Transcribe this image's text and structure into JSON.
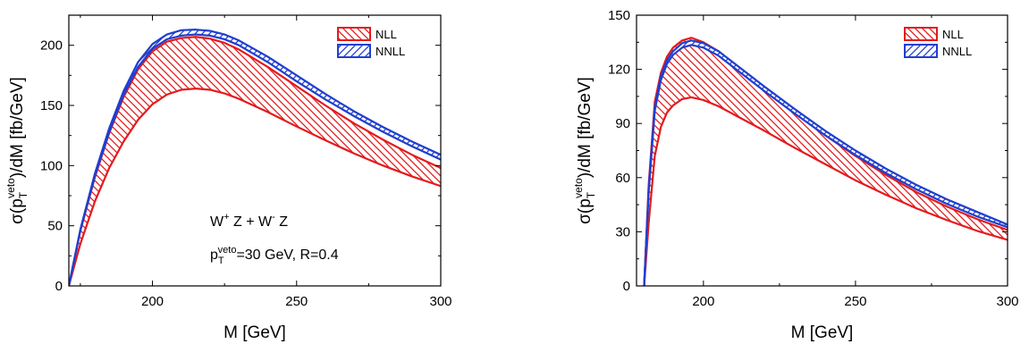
{
  "chart_data": [
    {
      "type": "area",
      "xlabel": "M [GeV]",
      "ylabel": "σ(p_T^veto)/dM [fb/GeV]",
      "ylabel_parts": {
        "pre": "σ(p",
        "sub": "T",
        "sup": "veto",
        "post": ")/dM [fb/GeV]"
      },
      "xlim": [
        171,
        300
      ],
      "ylim": [
        0,
        225
      ],
      "xticks": [
        200,
        250,
        300
      ],
      "yticks": [
        0,
        50,
        100,
        150,
        200
      ],
      "legend_position": "top-right",
      "annotations": [
        {
          "parts": [
            {
              "t": "W"
            },
            {
              "t": "+",
              "sup": true
            },
            {
              "t": " Z + W"
            },
            {
              "t": "-",
              "sup": true
            },
            {
              "t": " Z"
            }
          ]
        },
        {
          "parts": [
            {
              "t": "p"
            },
            {
              "t": "T",
              "sub": true
            },
            {
              "t": "veto",
              "sup": true
            },
            {
              "t": "=30 GeV, R=0.4"
            }
          ]
        }
      ],
      "series": [
        {
          "name": "NLL",
          "color": "#e31a1c",
          "hatch": "diagonal-down",
          "x": [
            171,
            175,
            180,
            185,
            190,
            195,
            200,
            205,
            210,
            215,
            220,
            225,
            230,
            240,
            250,
            260,
            270,
            280,
            290,
            300
          ],
          "lower": [
            0,
            35,
            70,
            98,
            120,
            138,
            151,
            159,
            163,
            164,
            163,
            160,
            155.5,
            144.5,
            132.5,
            121,
            110,
            100,
            91,
            83
          ],
          "upper": [
            0,
            46,
            90,
            127,
            157,
            180,
            195,
            203,
            206,
            207,
            205.5,
            202,
            196.5,
            182,
            166,
            150,
            135,
            121.5,
            109,
            98
          ]
        },
        {
          "name": "NNLL",
          "color": "#1f3fcf",
          "hatch": "diagonal-up",
          "x": [
            171,
            175,
            180,
            185,
            190,
            195,
            200,
            205,
            210,
            215,
            220,
            225,
            230,
            240,
            250,
            260,
            270,
            280,
            290,
            300
          ],
          "lower": [
            0,
            46,
            91,
            128,
            159,
            182,
            197,
            205,
            208,
            209,
            208,
            205,
            200,
            186,
            170,
            155,
            141,
            128,
            116,
            105
          ],
          "upper": [
            0,
            47,
            93,
            131,
            162,
            186,
            201,
            209,
            212.5,
            213,
            212,
            209,
            204,
            190.5,
            175,
            159.5,
            145,
            132,
            120,
            109
          ]
        }
      ]
    },
    {
      "type": "area",
      "xlabel": "M [GeV]",
      "ylabel": "σ(p_T^veto)/dM [fb/GeV]",
      "ylabel_parts": {
        "pre": "σ(p",
        "sub": "T",
        "sup": "veto",
        "post": ")/dM [fb/GeV]"
      },
      "xlim": [
        178,
        300
      ],
      "ylim": [
        0,
        150
      ],
      "xticks": [
        200,
        250,
        300
      ],
      "yticks": [
        0,
        30,
        60,
        90,
        120,
        150
      ],
      "legend_position": "top-right",
      "annotations": [],
      "series": [
        {
          "name": "NLL",
          "color": "#e31a1c",
          "hatch": "diagonal-down",
          "x": [
            180.5,
            182,
            184,
            186,
            188,
            190,
            193,
            196,
            200,
            205,
            210,
            220,
            230,
            240,
            250,
            260,
            270,
            280,
            290,
            300
          ],
          "lower": [
            0,
            35,
            72,
            88,
            96,
            100,
            103.5,
            104.5,
            103,
            99.5,
            95,
            86,
            76.5,
            67.5,
            58.5,
            50.5,
            43,
            36.5,
            30.5,
            25.5
          ],
          "upper": [
            0,
            56,
            102,
            118,
            127,
            132,
            136,
            137.5,
            135,
            130,
            123,
            109,
            96,
            83.5,
            72,
            61.5,
            52,
            44,
            37,
            31
          ]
        },
        {
          "name": "NNLL",
          "color": "#1f3fcf",
          "hatch": "diagonal-up",
          "x": [
            180.5,
            182,
            184,
            186,
            188,
            190,
            193,
            196,
            200,
            205,
            210,
            220,
            230,
            240,
            250,
            260,
            270,
            280,
            290,
            300
          ],
          "lower": [
            0,
            52,
            97,
            114,
            123,
            128,
            132,
            133.5,
            132,
            127.5,
            121,
            108,
            95.5,
            83.5,
            72.5,
            62.5,
            53.5,
            45.5,
            38.5,
            32.5
          ],
          "upper": [
            0,
            54,
            99,
            116,
            125,
            130,
            134.5,
            136,
            134.5,
            130,
            123.5,
            110.5,
            98,
            86,
            75,
            65,
            56,
            48,
            41,
            34
          ]
        }
      ]
    }
  ]
}
